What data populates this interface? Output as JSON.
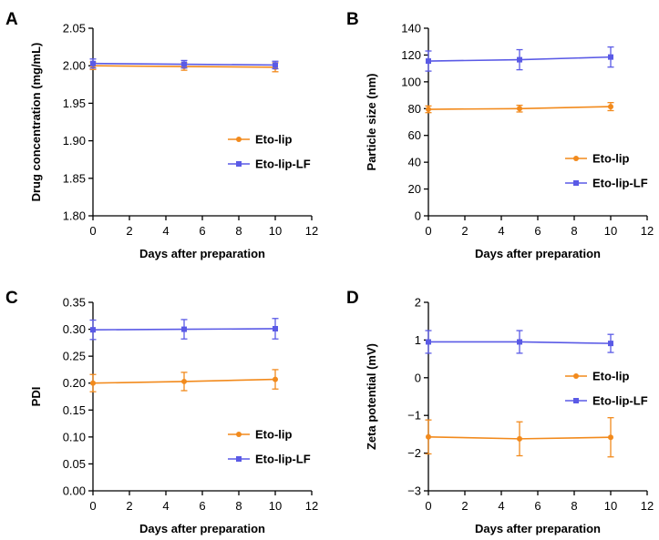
{
  "colors": {
    "Eto-lip": "#F28A1C",
    "Eto-lip-LF": "#5A5AE6",
    "axis": "#000000"
  },
  "chart_data": [
    {
      "panel": "A",
      "type": "line",
      "xlabel": "Days after preparation",
      "ylabel": "Drug concentration (mg/mL)",
      "xlim": [
        0,
        12
      ],
      "ylim": [
        1.8,
        2.05
      ],
      "xticks": [
        "0",
        "2",
        "4",
        "6",
        "8",
        "10",
        "12"
      ],
      "yticks": [
        "1.80",
        "1.85",
        "1.90",
        "1.95",
        "2.00",
        "2.05"
      ],
      "legend_position": "right-middle",
      "x": [
        0,
        5,
        10
      ],
      "series": [
        {
          "name": "Eto-lip",
          "marker": "circle",
          "values": [
            2.0,
            1.999,
            1.998
          ],
          "error": [
            0.005,
            0.005,
            0.006
          ]
        },
        {
          "name": "Eto-lip-LF",
          "marker": "square",
          "values": [
            2.003,
            2.002,
            2.001
          ],
          "error": [
            0.006,
            0.005,
            0.005
          ]
        }
      ]
    },
    {
      "panel": "B",
      "type": "line",
      "xlabel": "Days after preparation",
      "ylabel": "Particle size (nm)",
      "xlim": [
        0,
        12
      ],
      "ylim": [
        0,
        140
      ],
      "xticks": [
        "0",
        "2",
        "4",
        "6",
        "8",
        "10",
        "12"
      ],
      "yticks": [
        "0",
        "20",
        "40",
        "60",
        "80",
        "100",
        "120",
        "140"
      ],
      "legend_position": "bottom-right",
      "x": [
        0,
        5,
        10
      ],
      "series": [
        {
          "name": "Eto-lip",
          "marker": "circle",
          "values": [
            79.5,
            80.0,
            81.5
          ],
          "error": [
            2.5,
            2.5,
            3.0
          ]
        },
        {
          "name": "Eto-lip-LF",
          "marker": "square",
          "values": [
            115.5,
            116.5,
            118.5
          ],
          "error": [
            7.5,
            7.5,
            7.5
          ]
        }
      ]
    },
    {
      "panel": "C",
      "type": "line",
      "xlabel": "Days after preparation",
      "ylabel": "PDI",
      "xlim": [
        0,
        12
      ],
      "ylim": [
        0.0,
        0.35
      ],
      "xticks": [
        "0",
        "2",
        "4",
        "6",
        "8",
        "10",
        "12"
      ],
      "yticks": [
        "0.00",
        "0.05",
        "0.10",
        "0.15",
        "0.20",
        "0.25",
        "0.30",
        "0.35"
      ],
      "legend_position": "bottom-right",
      "x": [
        0,
        5,
        10
      ],
      "series": [
        {
          "name": "Eto-lip",
          "marker": "circle",
          "values": [
            0.2,
            0.203,
            0.207
          ],
          "error": [
            0.016,
            0.017,
            0.018
          ]
        },
        {
          "name": "Eto-lip-LF",
          "marker": "square",
          "values": [
            0.299,
            0.3,
            0.301
          ],
          "error": [
            0.018,
            0.018,
            0.019
          ]
        }
      ]
    },
    {
      "panel": "D",
      "type": "line",
      "xlabel": "Days after preparation",
      "ylabel": "Zeta potential (mV)",
      "xlim": [
        0,
        12
      ],
      "ylim": [
        -3,
        2
      ],
      "xticks": [
        "0",
        "2",
        "4",
        "6",
        "8",
        "10",
        "12"
      ],
      "yticks": [
        "−3",
        "−2",
        "−1",
        "0",
        "1",
        "2"
      ],
      "legend_position": "right-middle",
      "x": [
        0,
        5,
        10
      ],
      "series": [
        {
          "name": "Eto-lip",
          "marker": "circle",
          "values": [
            -1.57,
            -1.62,
            -1.58
          ],
          "error": [
            0.45,
            0.45,
            0.52
          ]
        },
        {
          "name": "Eto-lip-LF",
          "marker": "square",
          "values": [
            0.95,
            0.95,
            0.91
          ],
          "error": [
            0.3,
            0.3,
            0.24
          ]
        }
      ]
    }
  ]
}
